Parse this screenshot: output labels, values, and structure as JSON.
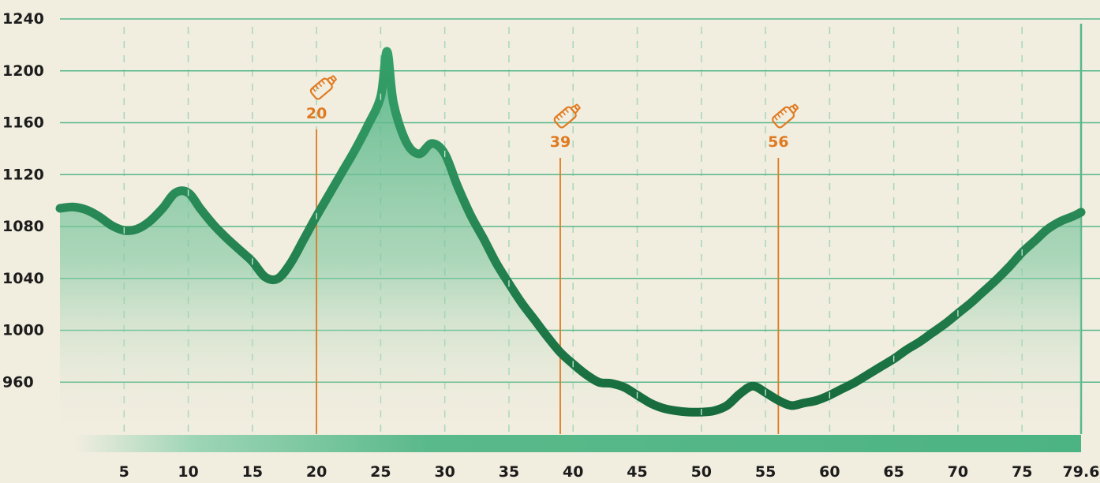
{
  "chart_data": {
    "type": "area",
    "title": "",
    "xlabel": "",
    "ylabel": "",
    "xlim": [
      0,
      79.6
    ],
    "ylim": [
      920,
      1240
    ],
    "x_ticks": [
      "5",
      "10",
      "15",
      "20",
      "25",
      "30",
      "35",
      "40",
      "45",
      "50",
      "55",
      "60",
      "65",
      "70",
      "75",
      "79.6"
    ],
    "y_ticks": [
      "1240",
      "1200",
      "1160",
      "1120",
      "1080",
      "1040",
      "1000",
      "960"
    ],
    "grid": true,
    "series": [
      {
        "x": [
          0,
          1,
          2,
          3,
          4,
          5,
          6,
          7,
          8,
          9,
          10,
          11,
          12,
          13,
          14,
          15,
          16,
          17,
          18,
          19,
          20,
          21,
          22,
          23,
          24,
          25,
          25.5,
          26,
          27,
          28,
          29,
          30,
          31,
          32,
          33,
          34,
          35,
          36,
          37,
          38,
          39,
          40,
          41,
          42,
          43,
          44,
          45,
          46,
          47,
          48,
          49,
          50,
          51,
          52,
          53,
          54,
          55,
          56,
          57,
          58,
          59,
          60,
          61,
          62,
          63,
          64,
          65,
          66,
          67,
          68,
          69,
          70,
          71,
          72,
          73,
          74,
          75,
          76,
          77,
          78,
          79,
          79.6
        ],
        "y": [
          1094,
          1095,
          1093,
          1088,
          1081,
          1077,
          1078,
          1084,
          1094,
          1106,
          1106,
          1093,
          1081,
          1071,
          1062,
          1053,
          1041,
          1040,
          1052,
          1070,
          1088,
          1105,
          1122,
          1139,
          1158,
          1180,
          1215,
          1175,
          1145,
          1136,
          1144,
          1136,
          1111,
          1089,
          1071,
          1052,
          1036,
          1021,
          1008,
          995,
          983,
          974,
          966,
          960,
          959,
          956,
          950,
          944,
          940,
          938,
          937,
          937,
          938,
          942,
          951,
          957,
          952,
          946,
          942,
          944,
          946,
          950,
          955,
          960,
          966,
          972,
          978,
          985,
          991,
          998,
          1005,
          1013,
          1021,
          1030,
          1039,
          1049,
          1060,
          1069,
          1078,
          1084,
          1088,
          1091
        ]
      }
    ],
    "markers": [
      {
        "x": 20,
        "label": "20",
        "icon": "water-bottle-icon"
      },
      {
        "x": 39,
        "label": "39",
        "icon": "water-bottle-icon"
      },
      {
        "x": 56,
        "label": "56",
        "icon": "water-bottle-icon"
      }
    ],
    "colors": {
      "background": "#f1eddf",
      "line": "#2e9461",
      "line_dark": "#1b6e40",
      "fill": "#4cb382",
      "grid": "#57b889",
      "marker": "#e07a20",
      "label": "#1c1c1c"
    }
  }
}
